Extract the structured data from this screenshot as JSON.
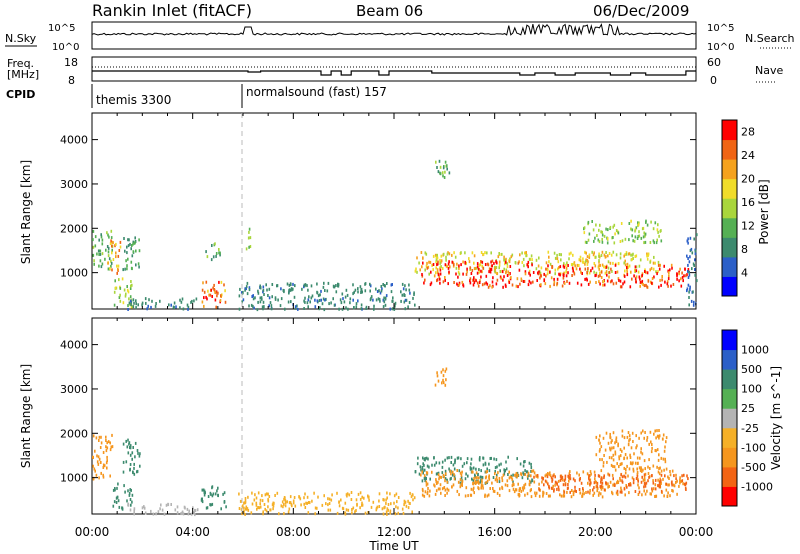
{
  "header": {
    "station": "Rankin Inlet (fitACF)",
    "beam": "Beam 06",
    "date": "06/Dec/2009"
  },
  "strips": {
    "nsky_label": "N.Sky",
    "nsky_ticks": [
      "10^5",
      "10^0"
    ],
    "nsearch_label": "N.Search",
    "nsearch_ticks": [
      "10^5",
      "10^0"
    ],
    "freq_label_1": "Freq.",
    "freq_label_2": "[MHz]",
    "freq_ticks": [
      "18",
      "8"
    ],
    "nave_label": "Nave",
    "nave_ticks": [
      "60",
      "0"
    ],
    "cpid_label": "CPID",
    "cpid_segments": [
      {
        "label": "themis 3300",
        "start_hour": 0
      },
      {
        "label": "normalsound (fast) 157",
        "start_hour": 6
      }
    ]
  },
  "colors": {
    "power_scale": [
      "#0000ff",
      "#2b5fc8",
      "#3c8a6e",
      "#55b054",
      "#a9d63c",
      "#f0dc2a",
      "#f5a21e",
      "#f06414",
      "#ff0000"
    ],
    "velocity_scale": [
      "#ff0000",
      "#f36414",
      "#f5961e",
      "#f5b028",
      "#b4b4b4",
      "#55b054",
      "#3c8a6e",
      "#2b5fc8",
      "#0000ff"
    ]
  },
  "chart_data": [
    {
      "type": "heatmap",
      "title": "Power",
      "ylabel": "Slant Range [km]",
      "xlabel": "Time UT",
      "x_range_hours": [
        0,
        24
      ],
      "y_range_km": [
        180,
        4600
      ],
      "x_tick_labels": [
        "00:00",
        "04:00",
        "08:00",
        "12:00",
        "16:00",
        "20:00",
        "00:00"
      ],
      "y_ticks": [
        1000,
        2000,
        3000,
        4000
      ],
      "colorbar_label": "Power [dB]",
      "colorbar_ticks": [
        4,
        8,
        12,
        16,
        20,
        24,
        28
      ],
      "colorbar_range": [
        0,
        30
      ],
      "regions": [
        {
          "t0": 0.0,
          "t1": 0.8,
          "r0": 1100,
          "r1": 2000,
          "value": 12
        },
        {
          "t0": 0.6,
          "t1": 1.1,
          "r0": 1000,
          "r1": 1800,
          "value": 22
        },
        {
          "t0": 0.8,
          "t1": 1.6,
          "r0": 250,
          "r1": 900,
          "value": 14
        },
        {
          "t0": 1.2,
          "t1": 1.9,
          "r0": 1100,
          "r1": 1900,
          "value": 10
        },
        {
          "t0": 1.4,
          "t1": 4.2,
          "r0": 200,
          "r1": 450,
          "value": 8
        },
        {
          "t0": 4.3,
          "t1": 5.3,
          "r0": 250,
          "r1": 850,
          "value": 24
        },
        {
          "t0": 4.5,
          "t1": 5.1,
          "r0": 1300,
          "r1": 1700,
          "value": 12
        },
        {
          "t0": 5.8,
          "t1": 12.8,
          "r0": 200,
          "r1": 800,
          "value": 8
        },
        {
          "t0": 6.1,
          "t1": 6.3,
          "r0": 1500,
          "r1": 2100,
          "value": 14
        },
        {
          "t0": 12.8,
          "t1": 22.5,
          "r0": 1000,
          "r1": 1500,
          "value": 18
        },
        {
          "t0": 13.0,
          "t1": 17.5,
          "r0": 700,
          "r1": 1300,
          "value": 28
        },
        {
          "t0": 17.5,
          "t1": 23.7,
          "r0": 700,
          "r1": 1200,
          "value": 26
        },
        {
          "t0": 13.6,
          "t1": 14.2,
          "r0": 3100,
          "r1": 3600,
          "value": 12
        },
        {
          "t0": 19.5,
          "t1": 22.6,
          "r0": 1700,
          "r1": 2200,
          "value": 14
        },
        {
          "t0": 23.6,
          "t1": 24.0,
          "r0": 250,
          "r1": 2000,
          "value": 6
        }
      ]
    },
    {
      "type": "heatmap",
      "title": "Velocity",
      "ylabel": "Slant Range [km]",
      "xlabel": "Time UT",
      "x_range_hours": [
        0,
        24
      ],
      "y_range_km": [
        180,
        4600
      ],
      "x_tick_labels": [
        "00:00",
        "04:00",
        "08:00",
        "12:00",
        "16:00",
        "20:00",
        "00:00"
      ],
      "y_ticks": [
        1000,
        2000,
        3000,
        4000
      ],
      "colorbar_label": "Velocity [m s^-1]",
      "colorbar_ticks": [
        1000,
        500,
        100,
        25,
        -25,
        -100,
        -500,
        -1000
      ],
      "regions": [
        {
          "t0": 0.0,
          "t1": 0.8,
          "r0": 1000,
          "r1": 2000,
          "value": -200
        },
        {
          "t0": 0.8,
          "t1": 1.6,
          "r0": 300,
          "r1": 900,
          "value": 150
        },
        {
          "t0": 1.2,
          "t1": 1.9,
          "r0": 1100,
          "r1": 1900,
          "value": 300
        },
        {
          "t0": 1.4,
          "t1": 4.2,
          "r0": 200,
          "r1": 450,
          "value": 20
        },
        {
          "t0": 4.3,
          "t1": 5.3,
          "r0": 300,
          "r1": 850,
          "value": 200
        },
        {
          "t0": 5.8,
          "t1": 12.8,
          "r0": 200,
          "r1": 700,
          "value": -60
        },
        {
          "t0": 12.8,
          "t1": 17.5,
          "r0": 900,
          "r1": 1500,
          "value": 150
        },
        {
          "t0": 13.0,
          "t1": 23.5,
          "r0": 600,
          "r1": 1200,
          "value": -300
        },
        {
          "t0": 17.5,
          "t1": 23.7,
          "r0": 700,
          "r1": 1100,
          "value": -700
        },
        {
          "t0": 13.6,
          "t1": 14.2,
          "r0": 3100,
          "r1": 3500,
          "value": -200
        },
        {
          "t0": 20.0,
          "t1": 22.8,
          "r0": 1200,
          "r1": 2100,
          "value": -250
        }
      ]
    }
  ]
}
